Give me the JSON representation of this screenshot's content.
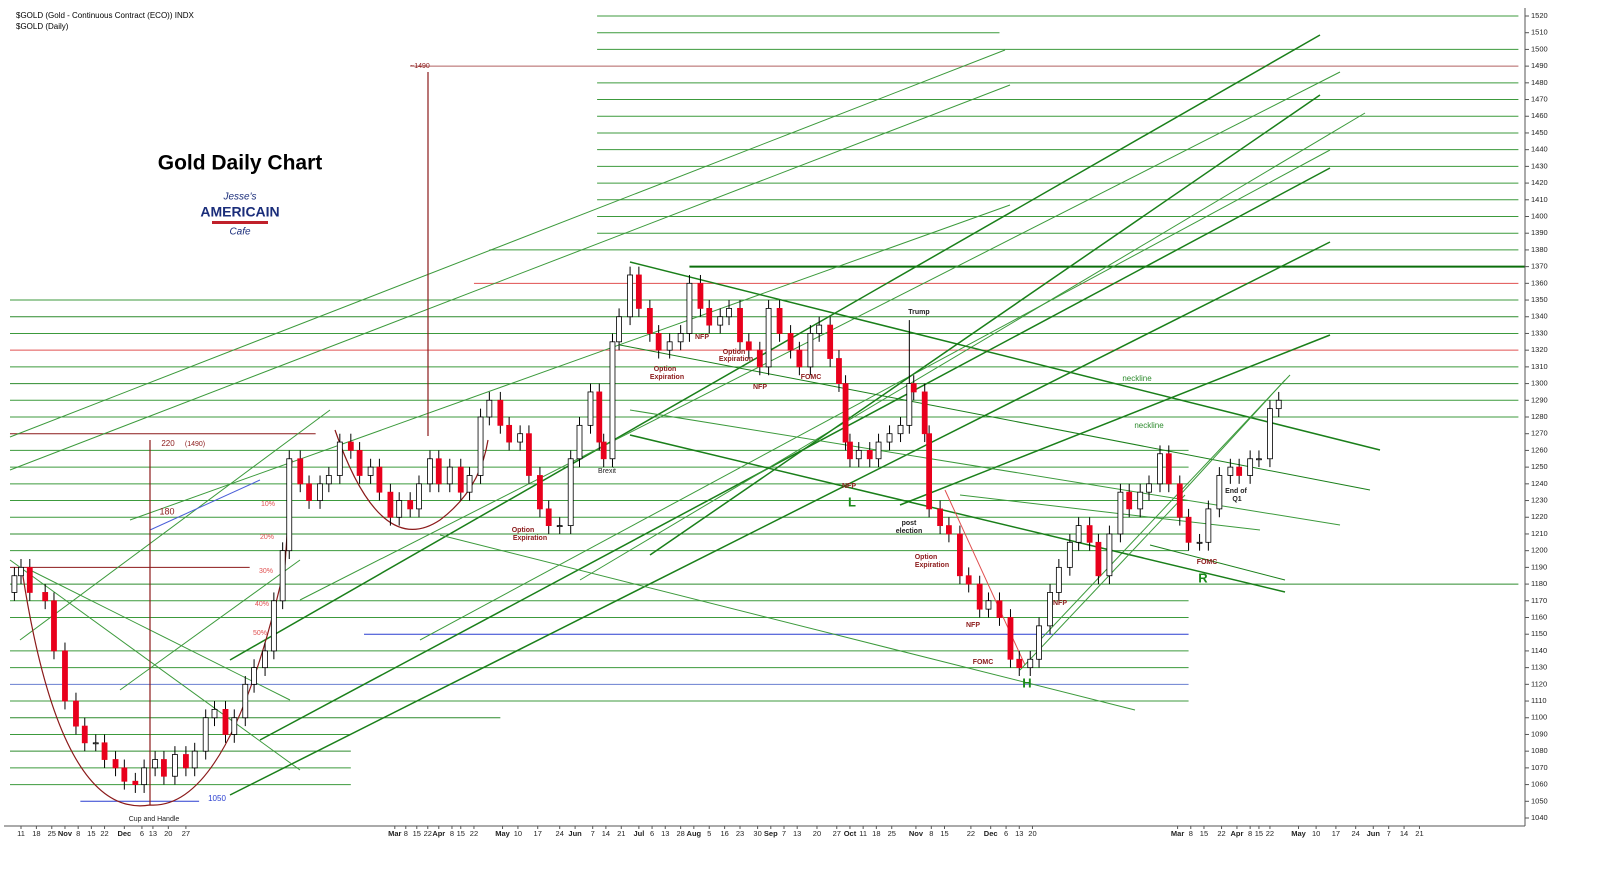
{
  "chart_data": {
    "type": "candlestick",
    "header": "$GOLD (Gold - Continuous Contract (ECO)) INDX",
    "subheader": "$GOLD (Daily)",
    "title": "Gold Daily Chart",
    "logo": [
      "Jesse's",
      "AMERICAIN",
      "Cafe"
    ],
    "up_color": "#ffffff",
    "down_color": "#e8001c",
    "xlim": [
      0,
      689
    ],
    "ylim": [
      1040,
      1520
    ],
    "yticks": [
      1040,
      1050,
      1060,
      1070,
      1080,
      1090,
      1100,
      1110,
      1120,
      1130,
      1140,
      1150,
      1160,
      1170,
      1180,
      1190,
      1200,
      1210,
      1220,
      1230,
      1240,
      1250,
      1260,
      1270,
      1280,
      1290,
      1300,
      1310,
      1320,
      1330,
      1340,
      1350,
      1360,
      1370,
      1380,
      1390,
      1400,
      1410,
      1420,
      1430,
      1440,
      1450,
      1460,
      1470,
      1480,
      1490,
      1500,
      1510,
      1520
    ],
    "xticks": [
      {
        "value": 5,
        "label": "11"
      },
      {
        "value": 12,
        "label": "18"
      },
      {
        "value": 19,
        "label": "25"
      },
      {
        "value": 25,
        "label": "Nov"
      },
      {
        "value": 31,
        "label": "8"
      },
      {
        "value": 37,
        "label": "15"
      },
      {
        "value": 43,
        "label": "22"
      },
      {
        "value": 52,
        "label": "Dec"
      },
      {
        "value": 60,
        "label": "6"
      },
      {
        "value": 65,
        "label": "13"
      },
      {
        "value": 72,
        "label": "20"
      },
      {
        "value": 80,
        "label": "27"
      },
      {
        "value": 175,
        "label": "Mar"
      },
      {
        "value": 180,
        "label": "8"
      },
      {
        "value": 185,
        "label": "15"
      },
      {
        "value": 190,
        "label": "22"
      },
      {
        "value": 195,
        "label": "Apr"
      },
      {
        "value": 201,
        "label": "8"
      },
      {
        "value": 205,
        "label": "15"
      },
      {
        "value": 211,
        "label": "22"
      },
      {
        "value": 224,
        "label": "May"
      },
      {
        "value": 231,
        "label": "10"
      },
      {
        "value": 240,
        "label": "17"
      },
      {
        "value": 250,
        "label": "24"
      },
      {
        "value": 257,
        "label": "Jun"
      },
      {
        "value": 265,
        "label": "7"
      },
      {
        "value": 271,
        "label": "14"
      },
      {
        "value": 278,
        "label": "21"
      },
      {
        "value": 286,
        "label": "Jul"
      },
      {
        "value": 292,
        "label": "6"
      },
      {
        "value": 298,
        "label": "13"
      },
      {
        "value": 305,
        "label": "28"
      },
      {
        "value": 311,
        "label": "Aug"
      },
      {
        "value": 318,
        "label": "5"
      },
      {
        "value": 325,
        "label": "16"
      },
      {
        "value": 332,
        "label": "23"
      },
      {
        "value": 340,
        "label": "30"
      },
      {
        "value": 346,
        "label": "Sep"
      },
      {
        "value": 352,
        "label": "7"
      },
      {
        "value": 358,
        "label": "13"
      },
      {
        "value": 367,
        "label": "20"
      },
      {
        "value": 376,
        "label": "27"
      },
      {
        "value": 382,
        "label": "Oct"
      },
      {
        "value": 388,
        "label": "11"
      },
      {
        "value": 394,
        "label": "18"
      },
      {
        "value": 401,
        "label": "25"
      },
      {
        "value": 412,
        "label": "Nov"
      },
      {
        "value": 419,
        "label": "8"
      },
      {
        "value": 425,
        "label": "15"
      },
      {
        "value": 437,
        "label": "22"
      },
      {
        "value": 446,
        "label": "Dec"
      },
      {
        "value": 453,
        "label": "6"
      },
      {
        "value": 459,
        "label": "13"
      },
      {
        "value": 465,
        "label": "20"
      },
      {
        "value": 531,
        "label": "Mar"
      },
      {
        "value": 537,
        "label": "8"
      },
      {
        "value": 543,
        "label": "15"
      },
      {
        "value": 551,
        "label": "22"
      },
      {
        "value": 558,
        "label": "Apr"
      },
      {
        "value": 564,
        "label": "8"
      },
      {
        "value": 568,
        "label": "15"
      },
      {
        "value": 573,
        "label": "22"
      },
      {
        "value": 586,
        "label": "May"
      },
      {
        "value": 594,
        "label": "10"
      },
      {
        "value": 603,
        "label": "17"
      },
      {
        "value": 612,
        "label": "24"
      },
      {
        "value": 620,
        "label": "Jun"
      },
      {
        "value": 627,
        "label": "7"
      },
      {
        "value": 634,
        "label": "14"
      },
      {
        "value": 641,
        "label": "21"
      }
    ],
    "x": [
      2,
      5,
      9,
      16,
      20,
      25,
      30,
      34,
      39,
      43,
      48,
      52,
      57,
      61,
      66,
      70,
      75,
      80,
      84,
      89,
      93,
      98,
      102,
      107,
      111,
      116,
      120,
      124,
      127,
      132,
      136,
      141,
      145,
      150,
      155,
      159,
      164,
      168,
      173,
      177,
      182,
      186,
      191,
      195,
      200,
      205,
      209,
      214,
      218,
      223,
      227,
      232,
      236,
      241,
      245,
      250,
      255,
      259,
      264,
      268,
      270,
      274,
      277,
      282,
      286,
      291,
      295,
      300,
      305,
      309,
      314,
      318,
      323,
      327,
      332,
      336,
      341,
      345,
      350,
      355,
      359,
      364,
      368,
      373,
      377,
      380,
      382,
      386,
      391,
      395,
      400,
      405,
      409,
      411,
      416,
      418,
      423,
      427,
      432,
      436,
      441,
      445,
      450,
      455,
      459,
      464,
      468,
      473,
      477,
      482,
      486,
      491,
      495,
      500,
      505,
      509,
      514,
      518,
      523,
      527,
      532,
      536,
      541,
      545,
      550,
      555,
      559,
      564,
      568,
      573,
      577
    ],
    "open": [
      1175,
      1185,
      1190,
      1175,
      1170,
      1140,
      1110,
      1095,
      1085,
      1085,
      1075,
      1070,
      1062,
      1060,
      1070,
      1075,
      1065,
      1078,
      1070,
      1080,
      1100,
      1105,
      1090,
      1100,
      1120,
      1130,
      1140,
      1170,
      1200,
      1255,
      1240,
      1230,
      1240,
      1245,
      1265,
      1260,
      1245,
      1250,
      1235,
      1220,
      1230,
      1225,
      1240,
      1255,
      1240,
      1250,
      1235,
      1245,
      1280,
      1290,
      1275,
      1265,
      1270,
      1245,
      1225,
      1215,
      1215,
      1255,
      1275,
      1295,
      1265,
      1255,
      1325,
      1340,
      1365,
      1345,
      1330,
      1320,
      1325,
      1330,
      1360,
      1345,
      1335,
      1340,
      1345,
      1325,
      1320,
      1310,
      1345,
      1330,
      1320,
      1310,
      1330,
      1335,
      1315,
      1300,
      1265,
      1255,
      1260,
      1255,
      1265,
      1270,
      1275,
      1300,
      1295,
      1270,
      1225,
      1215,
      1210,
      1185,
      1180,
      1165,
      1170,
      1160,
      1135,
      1130,
      1135,
      1155,
      1175,
      1190,
      1205,
      1215,
      1205,
      1185,
      1210,
      1235,
      1225,
      1235,
      1240,
      1258,
      1240,
      1220,
      1205,
      1205,
      1225,
      1245,
      1250,
      1245,
      1255,
      1255,
      1285
    ],
    "close": [
      1185,
      1190,
      1175,
      1170,
      1140,
      1110,
      1095,
      1085,
      1085,
      1075,
      1070,
      1062,
      1060,
      1070,
      1075,
      1065,
      1078,
      1070,
      1080,
      1100,
      1105,
      1090,
      1100,
      1120,
      1130,
      1140,
      1170,
      1200,
      1255,
      1240,
      1230,
      1240,
      1245,
      1265,
      1260,
      1245,
      1250,
      1235,
      1220,
      1230,
      1225,
      1240,
      1255,
      1240,
      1250,
      1235,
      1245,
      1280,
      1290,
      1275,
      1265,
      1270,
      1245,
      1225,
      1215,
      1215,
      1255,
      1275,
      1295,
      1265,
      1255,
      1325,
      1340,
      1365,
      1345,
      1330,
      1320,
      1325,
      1330,
      1360,
      1345,
      1335,
      1340,
      1345,
      1325,
      1320,
      1310,
      1345,
      1330,
      1320,
      1310,
      1330,
      1335,
      1315,
      1300,
      1265,
      1255,
      1260,
      1255,
      1265,
      1270,
      1275,
      1300,
      1295,
      1270,
      1225,
      1215,
      1210,
      1185,
      1180,
      1165,
      1170,
      1160,
      1135,
      1130,
      1135,
      1155,
      1175,
      1190,
      1205,
      1215,
      1205,
      1185,
      1210,
      1235,
      1225,
      1235,
      1240,
      1258,
      1240,
      1220,
      1205,
      1205,
      1225,
      1245,
      1250,
      1245,
      1255,
      1255,
      1285,
      1290
    ],
    "high": [
      1190,
      1195,
      1195,
      1180,
      1175,
      1145,
      1115,
      1100,
      1090,
      1090,
      1080,
      1075,
      1067,
      1075,
      1080,
      1080,
      1083,
      1083,
      1085,
      1105,
      1110,
      1110,
      1105,
      1125,
      1135,
      1145,
      1175,
      1205,
      1260,
      1260,
      1245,
      1245,
      1250,
      1270,
      1270,
      1265,
      1255,
      1255,
      1240,
      1235,
      1235,
      1245,
      1260,
      1260,
      1255,
      1255,
      1250,
      1285,
      1295,
      1295,
      1280,
      1275,
      1275,
      1250,
      1230,
      1220,
      1260,
      1280,
      1300,
      1300,
      1270,
      1330,
      1345,
      1370,
      1370,
      1350,
      1335,
      1330,
      1335,
      1365,
      1365,
      1350,
      1345,
      1350,
      1350,
      1330,
      1325,
      1350,
      1350,
      1335,
      1325,
      1335,
      1340,
      1340,
      1320,
      1305,
      1270,
      1265,
      1265,
      1270,
      1275,
      1280,
      1338,
      1305,
      1300,
      1275,
      1230,
      1220,
      1215,
      1190,
      1185,
      1175,
      1175,
      1165,
      1140,
      1140,
      1160,
      1180,
      1195,
      1210,
      1220,
      1220,
      1210,
      1215,
      1240,
      1240,
      1240,
      1245,
      1263,
      1263,
      1245,
      1225,
      1210,
      1230,
      1250,
      1255,
      1255,
      1260,
      1260,
      1290,
      1295
    ],
    "low": [
      1170,
      1180,
      1170,
      1165,
      1135,
      1105,
      1090,
      1080,
      1080,
      1070,
      1065,
      1057,
      1055,
      1055,
      1065,
      1060,
      1060,
      1065,
      1065,
      1075,
      1095,
      1085,
      1085,
      1095,
      1115,
      1125,
      1135,
      1165,
      1195,
      1235,
      1225,
      1225,
      1235,
      1240,
      1255,
      1240,
      1240,
      1230,
      1215,
      1215,
      1220,
      1220,
      1235,
      1235,
      1235,
      1230,
      1230,
      1240,
      1275,
      1270,
      1260,
      1260,
      1240,
      1220,
      1210,
      1210,
      1210,
      1250,
      1270,
      1260,
      1250,
      1250,
      1320,
      1335,
      1340,
      1325,
      1315,
      1315,
      1320,
      1325,
      1340,
      1330,
      1330,
      1335,
      1320,
      1315,
      1305,
      1305,
      1325,
      1315,
      1305,
      1305,
      1325,
      1310,
      1295,
      1260,
      1250,
      1250,
      1250,
      1250,
      1260,
      1265,
      1270,
      1290,
      1265,
      1220,
      1210,
      1205,
      1180,
      1175,
      1160,
      1160,
      1155,
      1130,
      1125,
      1125,
      1130,
      1150,
      1170,
      1185,
      1200,
      1200,
      1180,
      1180,
      1205,
      1220,
      1220,
      1230,
      1235,
      1235,
      1215,
      1200,
      1200,
      1200,
      1220,
      1240,
      1240,
      1240,
      1250,
      1250,
      1280
    ],
    "levels": [
      {
        "value": 1520,
        "x": [
          267,
          686
        ],
        "color": "#3c9a3c"
      },
      {
        "value": 1510,
        "x": [
          267,
          450
        ],
        "color": "#3c9a3c"
      },
      {
        "value": 1500,
        "x": [
          267,
          686
        ],
        "color": "#3c9a3c"
      },
      {
        "value": 1490,
        "x": [
          182,
          686
        ],
        "color": "#b06060"
      },
      {
        "value": 1480,
        "x": [
          267,
          686
        ],
        "color": "#3c9a3c"
      },
      {
        "value": 1470,
        "x": [
          267,
          686
        ],
        "color": "#3c9a3c"
      },
      {
        "value": 1460,
        "x": [
          267,
          686
        ],
        "color": "#3c9a3c"
      },
      {
        "value": 1450,
        "x": [
          267,
          686
        ],
        "color": "#3c9a3c"
      },
      {
        "value": 1440,
        "x": [
          267,
          686
        ],
        "color": "#3c9a3c"
      },
      {
        "value": 1430,
        "x": [
          267,
          686
        ],
        "color": "#3c9a3c"
      },
      {
        "value": 1420,
        "x": [
          267,
          686
        ],
        "color": "#3c9a3c"
      },
      {
        "value": 1410,
        "x": [
          267,
          686
        ],
        "color": "#3c9a3c"
      },
      {
        "value": 1400,
        "x": [
          267,
          686
        ],
        "color": "#3c9a3c"
      },
      {
        "value": 1390,
        "x": [
          267,
          686
        ],
        "color": "#3c9a3c"
      },
      {
        "value": 1380,
        "x": [
          218,
          686
        ],
        "color": "#3c9a3c"
      },
      {
        "value": 1370,
        "x": [
          309,
          689
        ],
        "color": "#0b6e0b"
      },
      {
        "value": 1360,
        "x": [
          211,
          686
        ],
        "color": "#e05050"
      },
      {
        "value": 1350,
        "x": [
          0,
          686
        ],
        "color": "#3c9a3c"
      },
      {
        "value": 1340,
        "x": [
          0,
          686
        ],
        "color": "#2e8b2e"
      },
      {
        "value": 1330,
        "x": [
          0,
          686
        ],
        "color": "#3c9a3c"
      },
      {
        "value": 1320,
        "x": [
          0,
          686
        ],
        "color": "#e05050"
      },
      {
        "value": 1310,
        "x": [
          0,
          686
        ],
        "color": "#3c9a3c"
      },
      {
        "value": 1300,
        "x": [
          0,
          686
        ],
        "color": "#2e8b2e"
      },
      {
        "value": 1290,
        "x": [
          0,
          686
        ],
        "color": "#3c9a3c"
      },
      {
        "value": 1280,
        "x": [
          0,
          686
        ],
        "color": "#3c9a3c"
      },
      {
        "value": 1270,
        "x": [
          0,
          139
        ],
        "color": "#8b1a1a"
      },
      {
        "value": 1260,
        "x": [
          0,
          536
        ],
        "color": "#3c9a3c"
      },
      {
        "value": 1250,
        "x": [
          0,
          536
        ],
        "color": "#3c9a3c"
      },
      {
        "value": 1240,
        "x": [
          0,
          536
        ],
        "color": "#3c9a3c"
      },
      {
        "value": 1230,
        "x": [
          0,
          536
        ],
        "color": "#3c9a3c"
      },
      {
        "value": 1220,
        "x": [
          0,
          536
        ],
        "color": "#3c9a3c"
      },
      {
        "value": 1210,
        "x": [
          0,
          536
        ],
        "color": "#2e8b2e"
      },
      {
        "value": 1200,
        "x": [
          0,
          536
        ],
        "color": "#3c9a3c"
      },
      {
        "value": 1190,
        "x": [
          0,
          109
        ],
        "color": "#8b1a1a"
      },
      {
        "value": 1180,
        "x": [
          0,
          686
        ],
        "color": "#2e8b2e"
      },
      {
        "value": 1170,
        "x": [
          0,
          536
        ],
        "color": "#3c9a3c"
      },
      {
        "value": 1160,
        "x": [
          0,
          536
        ],
        "color": "#3c9a3c"
      },
      {
        "value": 1150,
        "x": [
          161,
          536
        ],
        "color": "#2a3fd0"
      },
      {
        "value": 1140,
        "x": [
          0,
          536
        ],
        "color": "#3c9a3c"
      },
      {
        "value": 1130,
        "x": [
          0,
          536
        ],
        "color": "#3c9a3c"
      },
      {
        "value": 1120,
        "x": [
          0,
          536
        ],
        "color": "#6a7fd0"
      },
      {
        "value": 1110,
        "x": [
          0,
          536
        ],
        "color": "#3c9a3c"
      },
      {
        "value": 1100,
        "x": [
          0,
          223
        ],
        "color": "#2e8b2e"
      },
      {
        "value": 1090,
        "x": [
          0,
          155
        ],
        "color": "#3c9a3c"
      },
      {
        "value": 1080,
        "x": [
          0,
          155
        ],
        "color": "#2e8b2e"
      },
      {
        "value": 1070,
        "x": [
          0,
          155
        ],
        "color": "#3c9a3c"
      },
      {
        "value": 1060,
        "x": [
          0,
          155
        ],
        "color": "#3c9a3c"
      },
      {
        "value": 1050,
        "x": [
          32,
          86
        ],
        "color": "#2a3fd0"
      }
    ],
    "annotations": [
      "~1490",
      "220",
      "(1490)",
      "180",
      "10%",
      "20%",
      "30%",
      "40%",
      "50%",
      "1050",
      "Cup and Handle",
      "Brexit",
      "Option",
      "Expiration",
      "Option",
      "Expiration",
      "NFP",
      "Option",
      "Expiration",
      "NFP",
      "FOMC",
      "Trump",
      "NFP",
      "L",
      "post",
      "election",
      "Option",
      "Expiration",
      "NFP",
      "FOMC",
      "H",
      "NFP",
      "neckline",
      "neckline",
      "FOMC",
      "R",
      "End of",
      "Q1"
    ]
  }
}
